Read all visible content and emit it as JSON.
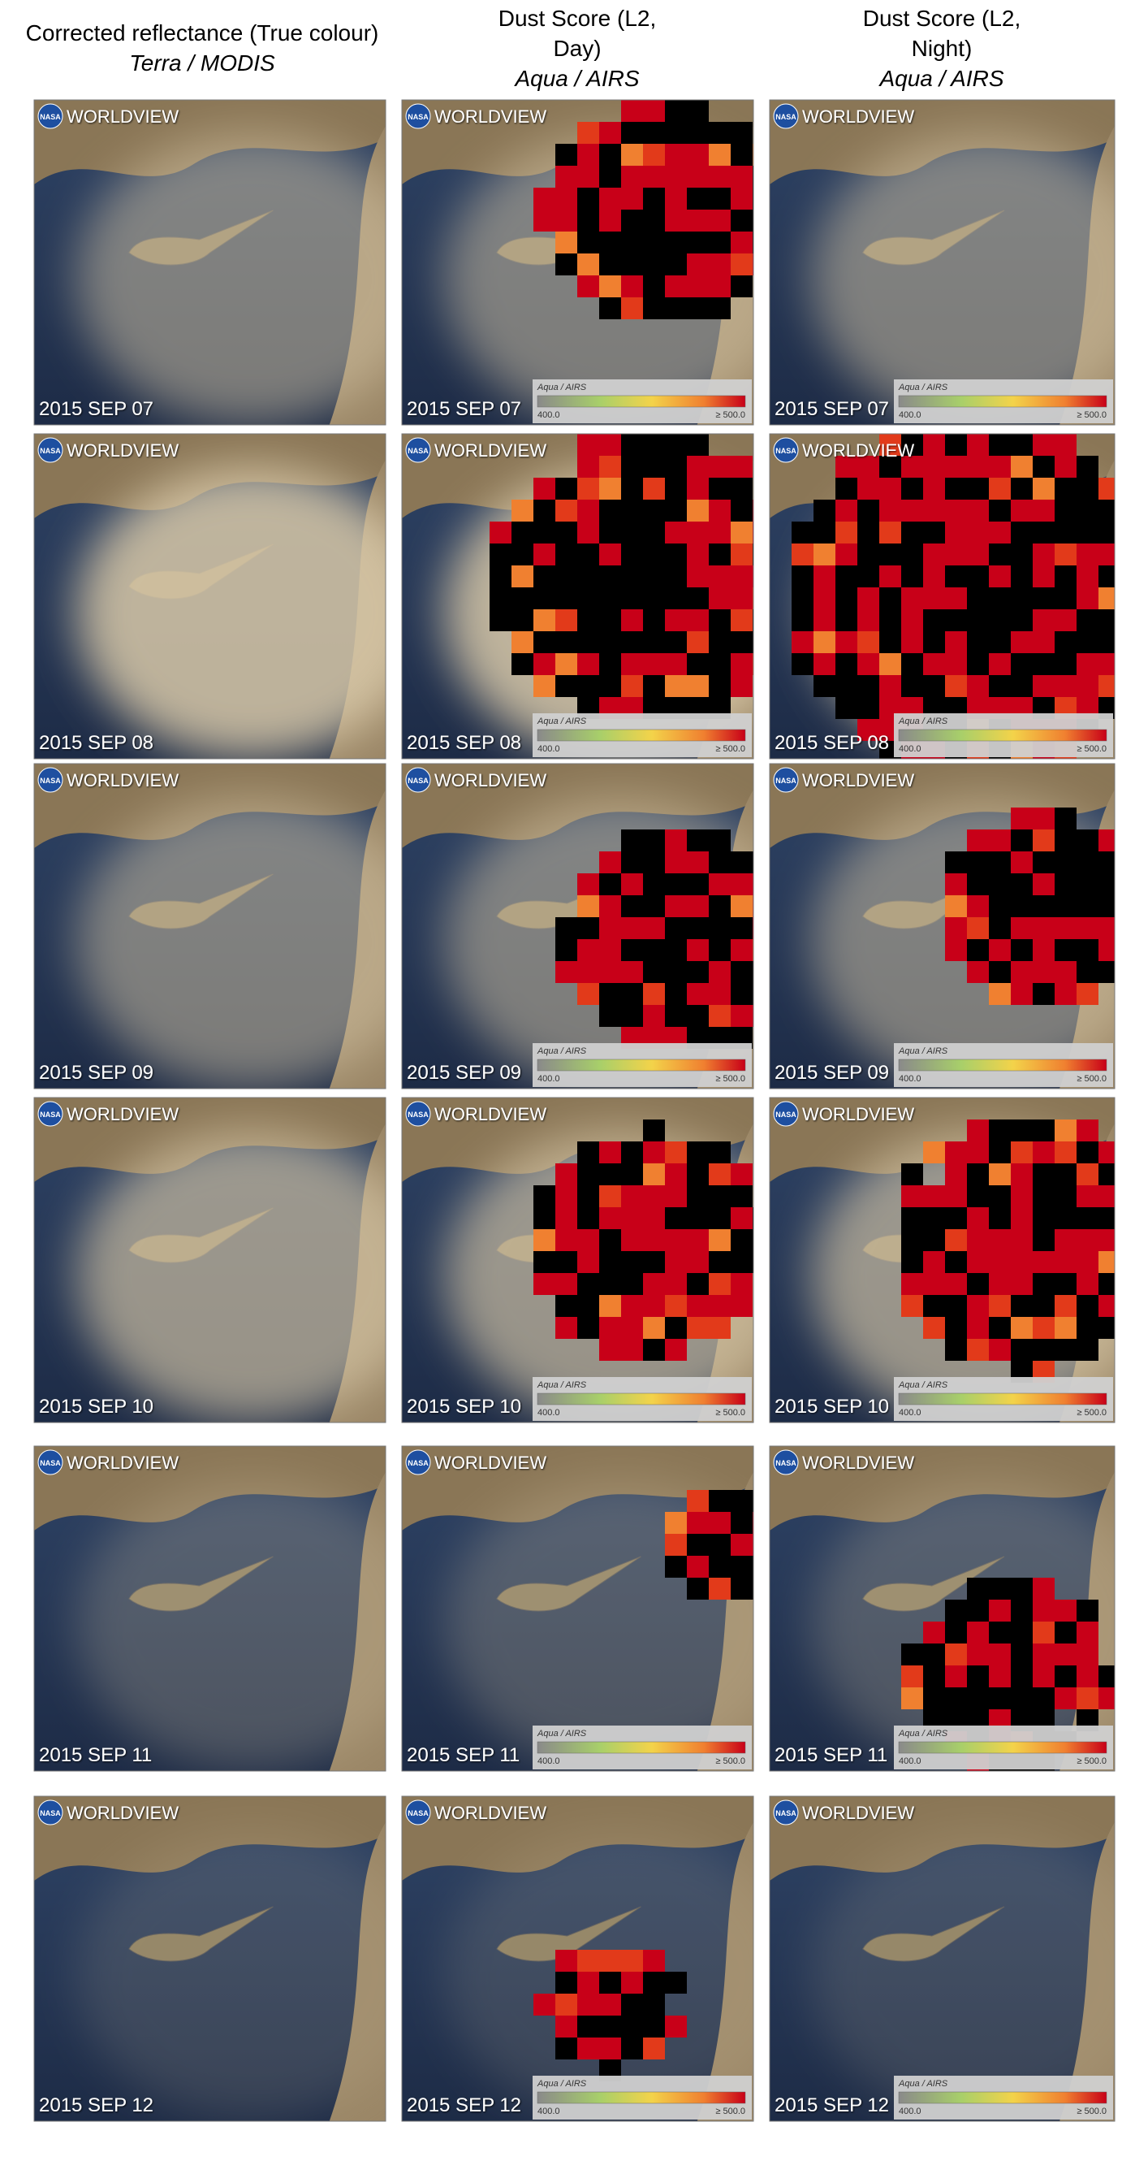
{
  "columns": [
    {
      "title": "Corrected reflectance (True colour)",
      "subtitle": "Terra / MODIS"
    },
    {
      "title": "Dust Score (L2, Day)",
      "subtitle": "Aqua / AIRS"
    },
    {
      "title": "Dust Score (L2, Night)",
      "subtitle": "Aqua / AIRS"
    }
  ],
  "panel_logo": {
    "agency": "NASA",
    "app": "WORLDVIEW"
  },
  "legend": {
    "label": "Aqua / AIRS",
    "min_label": "400.0",
    "max_label": "≥ 500.0"
  },
  "rows": [
    {
      "date": "2015 SEP 07"
    },
    {
      "date": "2015 SEP 08"
    },
    {
      "date": "2015 SEP 09"
    },
    {
      "date": "2015 SEP 10"
    },
    {
      "date": "2015 SEP 11"
    },
    {
      "date": "2015 SEP 12"
    }
  ]
}
